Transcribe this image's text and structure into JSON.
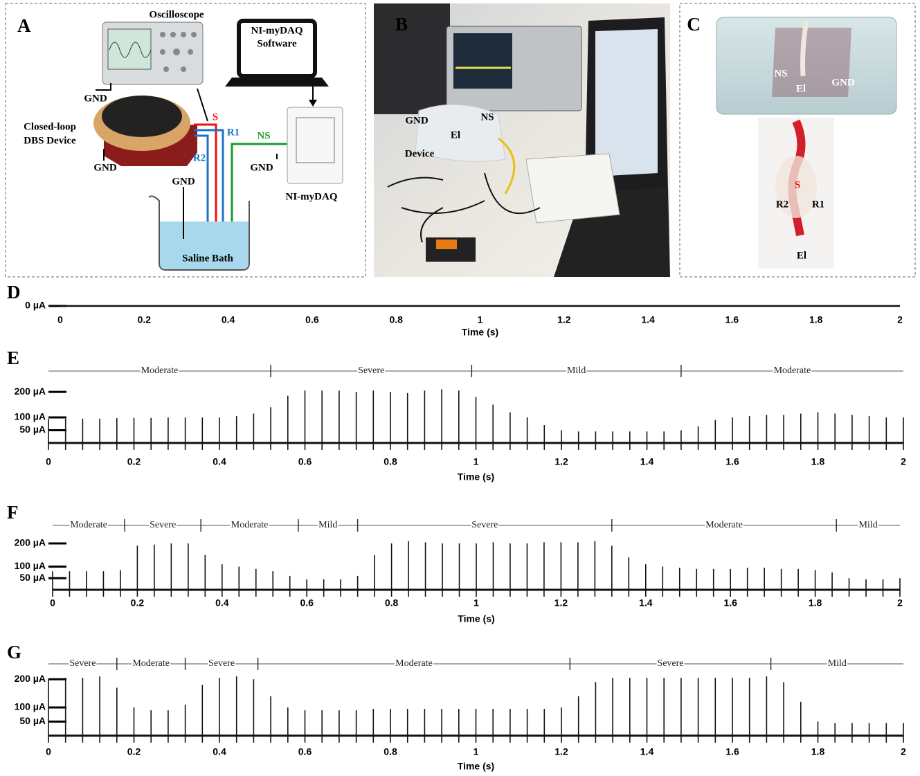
{
  "figure": {
    "panels": [
      {
        "letter": "A",
        "oscilloscope": "Oscilloscope",
        "software": [
          "NI-myDAQ",
          "Software"
        ],
        "device": [
          "Closed-loop",
          "DBS Device"
        ],
        "gnd": [
          "GND",
          "GND",
          "GND",
          "GND"
        ],
        "s": "S",
        "r1": "R1",
        "r2": "R2",
        "ns": "NS",
        "daq": "NI-myDAQ",
        "bath": "Saline Bath"
      },
      {
        "letter": "B",
        "gnd": "GND",
        "ns": "NS",
        "el": "El",
        "device": "Device"
      },
      {
        "letter": "C",
        "ns": "NS",
        "el": [
          "El",
          "El"
        ],
        "gnd": "GND",
        "s": "S",
        "r2": "R2",
        "r1": "R1"
      }
    ]
  },
  "chart_data": [
    {
      "type": "line",
      "title": "D",
      "color": "#111",
      "xlabel": "Time (s)",
      "x": [
        0,
        0.04,
        0.08,
        0.12,
        0.16,
        0.2,
        0.24,
        0.28,
        0.32,
        0.36,
        0.4,
        0.44,
        0.48,
        0.52,
        0.56,
        0.6,
        0.64,
        0.68,
        0.72,
        0.76,
        0.8,
        0.84,
        0.88,
        0.92,
        0.96,
        1,
        1.04,
        1.08,
        1.12,
        1.16,
        1.2,
        1.24,
        1.28,
        1.32,
        1.36,
        1.4,
        1.44,
        1.48,
        1.52,
        1.56,
        1.6,
        1.64,
        1.68,
        1.72,
        1.76,
        1.8,
        1.84,
        1.88,
        1.92,
        1.96,
        2
      ],
      "values": [
        0,
        0,
        0,
        0,
        0,
        0,
        0,
        0,
        0,
        0,
        0,
        0,
        0,
        0,
        0,
        0,
        0,
        0,
        0,
        0,
        0,
        0,
        0,
        0,
        0,
        0,
        0,
        0,
        0,
        0,
        0,
        0,
        0,
        0,
        0,
        0,
        0,
        0,
        0,
        0,
        0,
        0,
        0,
        0,
        0,
        0,
        0,
        0,
        0,
        0,
        0
      ],
      "xlim": [
        0,
        2
      ],
      "xticks": [
        0,
        0.2,
        0.4,
        0.6,
        0.8,
        1,
        1.2,
        1.4,
        1.6,
        1.8,
        2
      ],
      "ylim": [
        -30,
        230
      ],
      "yticks": [
        {
          "value": 0,
          "label": "0 µA"
        }
      ],
      "segments": []
    },
    {
      "type": "spike",
      "title": "E",
      "color": "#111",
      "xlabel": "Time (s)",
      "x": [
        0,
        0.04,
        0.08,
        0.12,
        0.16,
        0.2,
        0.24,
        0.28,
        0.32,
        0.36,
        0.4,
        0.44,
        0.48,
        0.52,
        0.56,
        0.6,
        0.64,
        0.68,
        0.72,
        0.76,
        0.8,
        0.84,
        0.88,
        0.92,
        0.96,
        1,
        1.04,
        1.08,
        1.12,
        1.16,
        1.2,
        1.24,
        1.28,
        1.32,
        1.36,
        1.4,
        1.44,
        1.48,
        1.52,
        1.56,
        1.6,
        1.64,
        1.68,
        1.72,
        1.76,
        1.8,
        1.84,
        1.88,
        1.92,
        1.96,
        2
      ],
      "values": [
        95,
        95,
        95,
        95,
        97,
        98,
        98,
        100,
        100,
        100,
        100,
        105,
        115,
        140,
        185,
        205,
        205,
        205,
        200,
        205,
        200,
        195,
        205,
        210,
        205,
        180,
        150,
        120,
        100,
        70,
        50,
        45,
        45,
        45,
        45,
        45,
        45,
        50,
        65,
        90,
        100,
        105,
        110,
        110,
        115,
        120,
        115,
        110,
        105,
        100,
        100
      ],
      "xlim": [
        0,
        2
      ],
      "xticks": [
        0,
        0.2,
        0.4,
        0.6,
        0.8,
        1,
        1.2,
        1.4,
        1.6,
        1.8,
        2
      ],
      "ylim": [
        -30,
        230
      ],
      "yticks": [
        {
          "value": 200,
          "label": "200 µA"
        },
        {
          "value": 100,
          "label": "100 µA"
        },
        {
          "value": 50,
          "label": "50 µA"
        }
      ],
      "segments": [
        {
          "label": "Moderate",
          "start": 0,
          "end": 0.52
        },
        {
          "label": "Severe",
          "start": 0.52,
          "end": 0.99
        },
        {
          "label": "Mild",
          "start": 0.99,
          "end": 1.48
        },
        {
          "label": "Moderate",
          "start": 1.48,
          "end": 2
        }
      ]
    },
    {
      "type": "spike",
      "title": "F",
      "color": "#111",
      "xlabel": "Time (s)",
      "x": [
        0,
        0.04,
        0.08,
        0.12,
        0.16,
        0.2,
        0.24,
        0.28,
        0.32,
        0.36,
        0.4,
        0.44,
        0.48,
        0.52,
        0.56,
        0.6,
        0.64,
        0.68,
        0.72,
        0.76,
        0.8,
        0.84,
        0.88,
        0.92,
        0.96,
        1,
        1.04,
        1.08,
        1.12,
        1.16,
        1.2,
        1.24,
        1.28,
        1.32,
        1.36,
        1.4,
        1.44,
        1.48,
        1.52,
        1.56,
        1.6,
        1.64,
        1.68,
        1.72,
        1.76,
        1.8,
        1.84,
        1.88,
        1.92,
        1.96,
        2
      ],
      "values": [
        80,
        80,
        80,
        80,
        85,
        190,
        195,
        200,
        200,
        150,
        110,
        100,
        90,
        80,
        60,
        45,
        45,
        45,
        60,
        150,
        200,
        210,
        205,
        200,
        200,
        200,
        205,
        200,
        200,
        205,
        205,
        205,
        210,
        190,
        140,
        110,
        100,
        95,
        90,
        90,
        90,
        95,
        95,
        90,
        90,
        85,
        75,
        50,
        45,
        45,
        50
      ],
      "xlim": [
        0,
        2
      ],
      "xticks": [
        0,
        0.2,
        0.4,
        0.6,
        0.8,
        1,
        1.2,
        1.4,
        1.6,
        1.8,
        2
      ],
      "ylim": [
        -30,
        230
      ],
      "yticks": [
        {
          "value": 200,
          "label": "200 µA"
        },
        {
          "value": 100,
          "label": "100 µA"
        },
        {
          "value": 50,
          "label": "50 µA"
        }
      ],
      "segments": [
        {
          "label": "Moderate",
          "start": 0,
          "end": 0.17
        },
        {
          "label": "Severe",
          "start": 0.17,
          "end": 0.35
        },
        {
          "label": "Moderate",
          "start": 0.35,
          "end": 0.58
        },
        {
          "label": "Mild",
          "start": 0.58,
          "end": 0.72
        },
        {
          "label": "Severe",
          "start": 0.72,
          "end": 1.32
        },
        {
          "label": "Moderate",
          "start": 1.32,
          "end": 1.85
        },
        {
          "label": "Mild",
          "start": 1.85,
          "end": 2
        }
      ]
    },
    {
      "type": "spike",
      "title": "G",
      "color": "#111",
      "xlabel": "Time (s)",
      "x": [
        0,
        0.04,
        0.08,
        0.12,
        0.16,
        0.2,
        0.24,
        0.28,
        0.32,
        0.36,
        0.4,
        0.44,
        0.48,
        0.52,
        0.56,
        0.6,
        0.64,
        0.68,
        0.72,
        0.76,
        0.8,
        0.84,
        0.88,
        0.92,
        0.96,
        1,
        1.04,
        1.08,
        1.12,
        1.16,
        1.2,
        1.24,
        1.28,
        1.32,
        1.36,
        1.4,
        1.44,
        1.48,
        1.52,
        1.56,
        1.6,
        1.64,
        1.68,
        1.72,
        1.76,
        1.8,
        1.84,
        1.88,
        1.92,
        1.96,
        2
      ],
      "values": [
        200,
        205,
        205,
        210,
        170,
        100,
        90,
        90,
        110,
        180,
        205,
        210,
        200,
        140,
        100,
        90,
        90,
        90,
        90,
        95,
        95,
        95,
        95,
        95,
        95,
        95,
        95,
        95,
        95,
        95,
        100,
        140,
        190,
        205,
        205,
        205,
        205,
        205,
        205,
        205,
        205,
        205,
        210,
        190,
        120,
        50,
        45,
        45,
        45,
        45,
        45
      ],
      "xlim": [
        0,
        2
      ],
      "xticks": [
        0,
        0.2,
        0.4,
        0.6,
        0.8,
        1,
        1.2,
        1.4,
        1.6,
        1.8,
        2
      ],
      "ylim": [
        -30,
        230
      ],
      "yticks": [
        {
          "value": 200,
          "label": "200 µA"
        },
        {
          "value": 100,
          "label": "100 µA"
        },
        {
          "value": 50,
          "label": "50 µA"
        }
      ],
      "segments": [
        {
          "label": "Severe",
          "start": 0,
          "end": 0.16
        },
        {
          "label": "Moderate",
          "start": 0.16,
          "end": 0.32
        },
        {
          "label": "Severe",
          "start": 0.32,
          "end": 0.49
        },
        {
          "label": "Moderate",
          "start": 0.49,
          "end": 1.22
        },
        {
          "label": "Severe",
          "start": 1.22,
          "end": 1.69
        },
        {
          "label": "Mild",
          "start": 1.69,
          "end": 2
        }
      ]
    }
  ]
}
